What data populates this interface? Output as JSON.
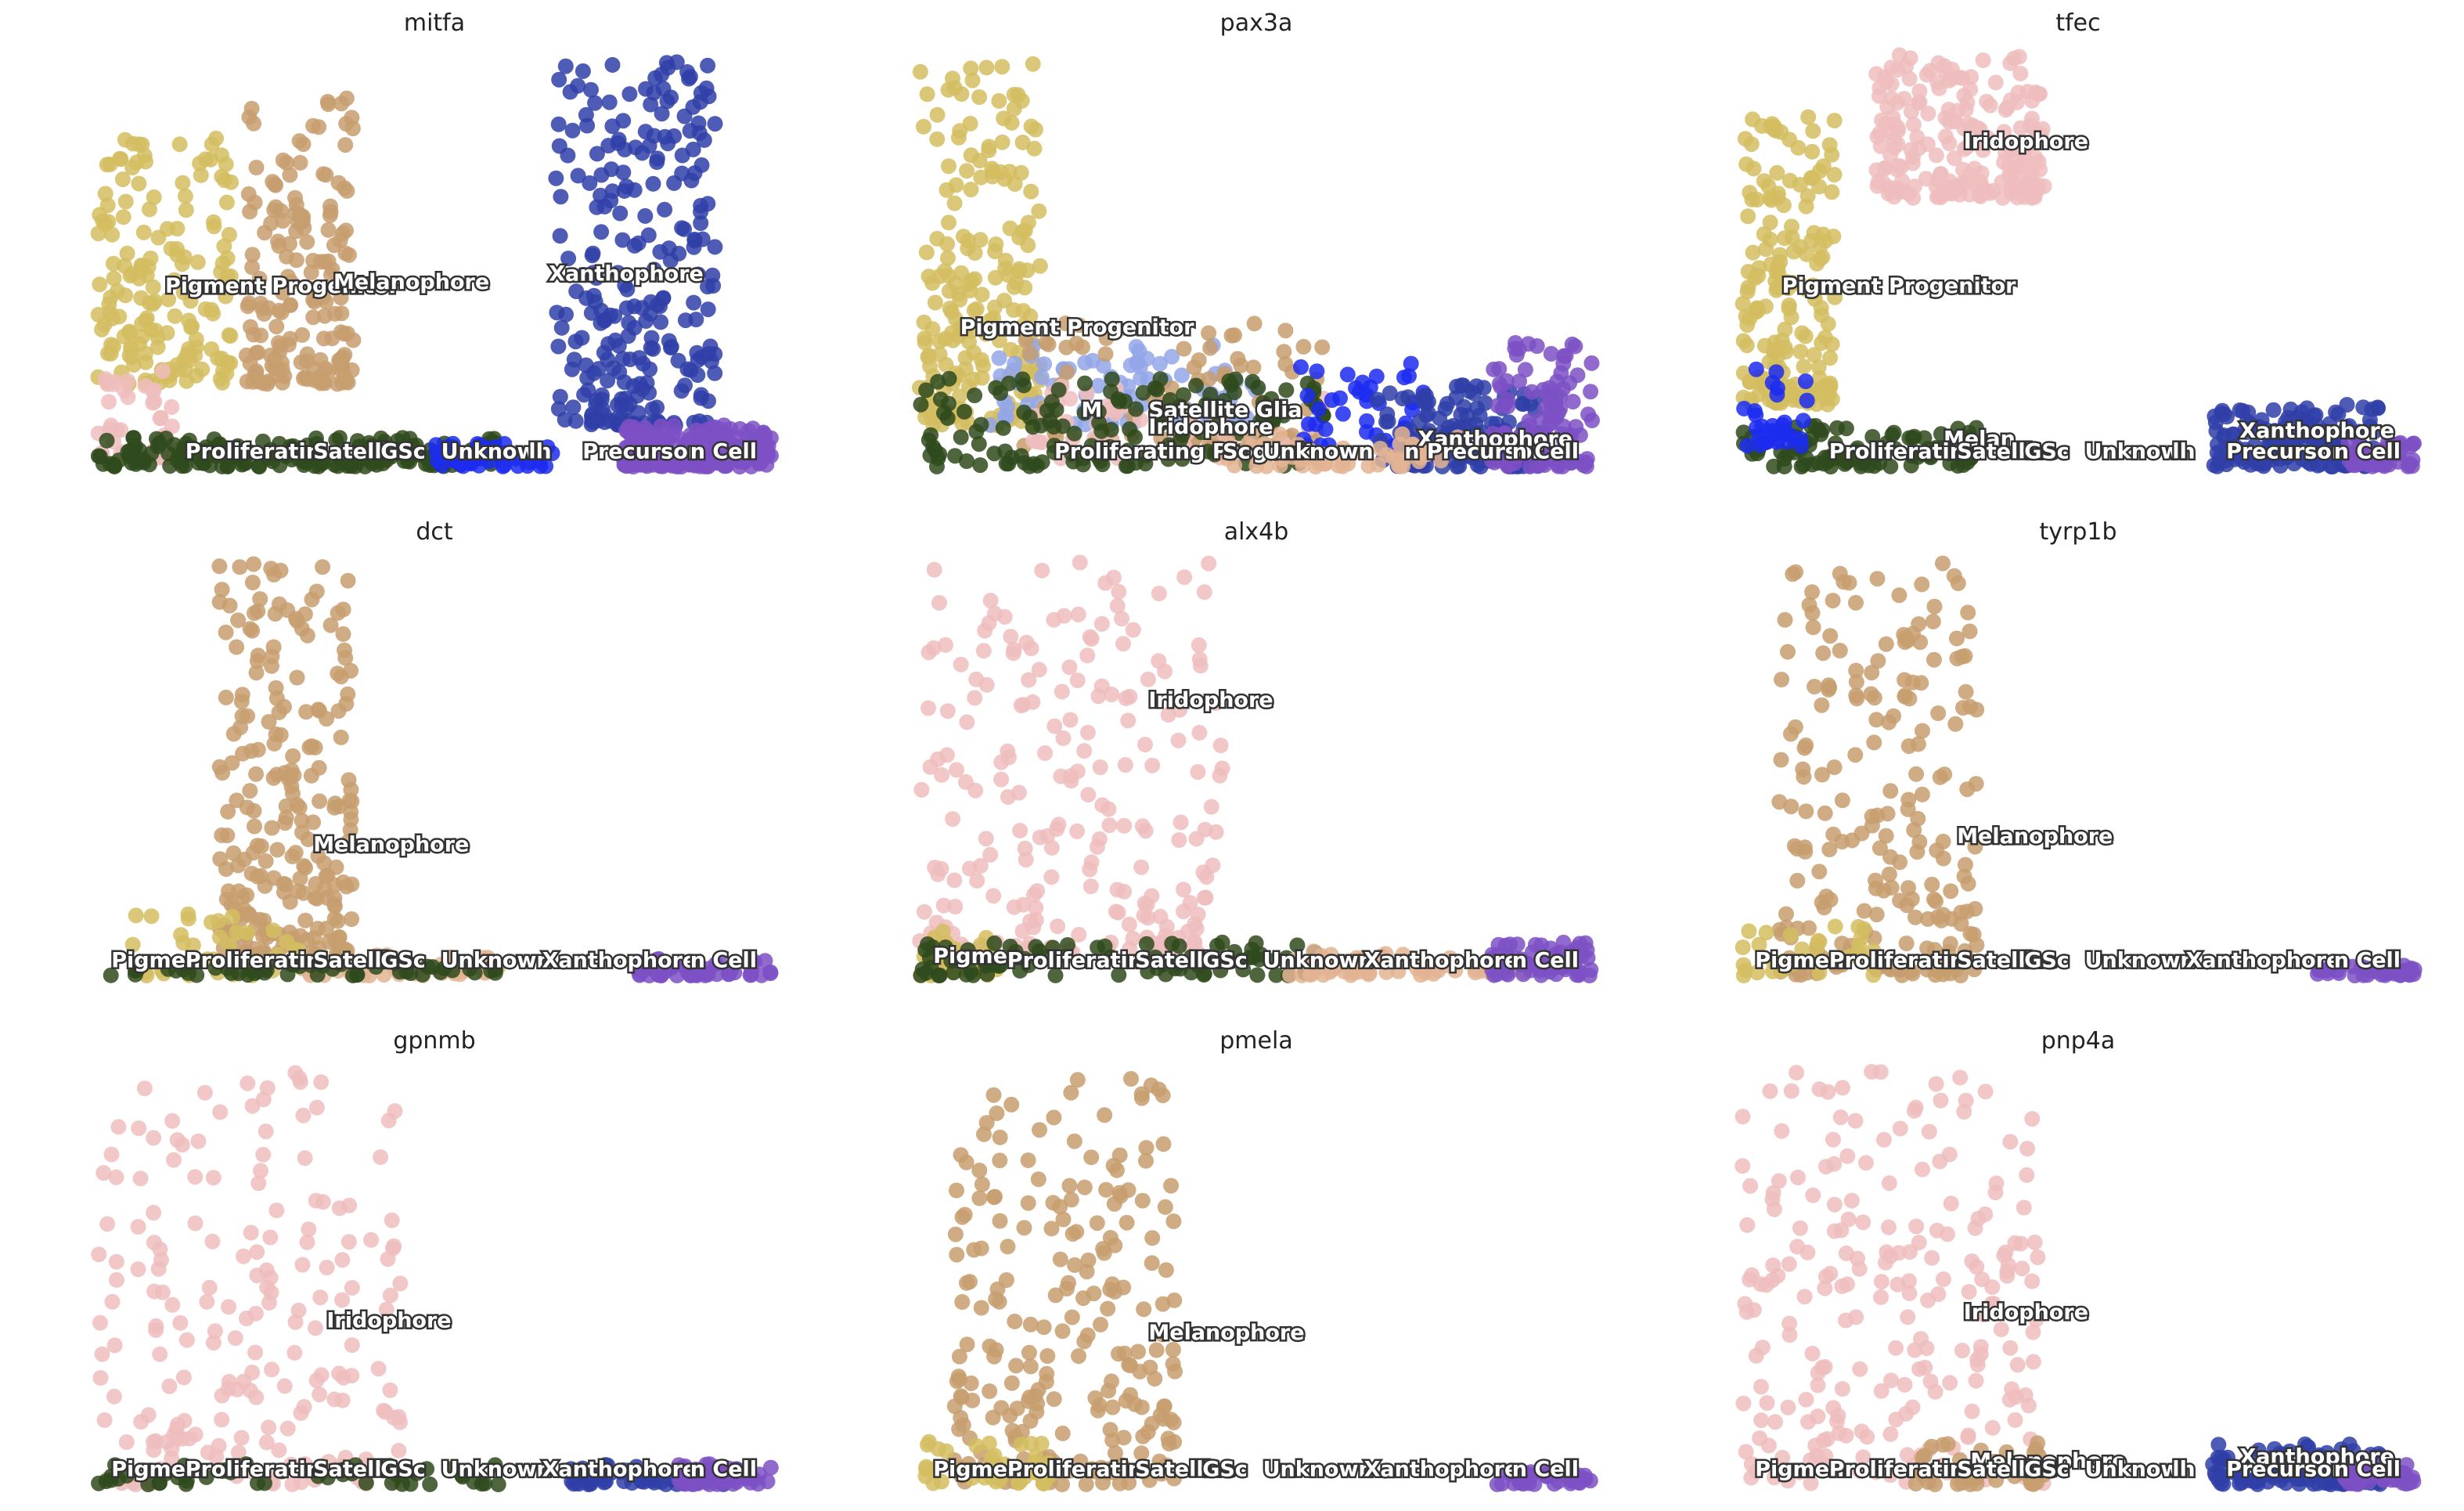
{
  "colors": {
    "Pigment Progenitor": "#d4bd60",
    "Melanophore": "#c79d6e",
    "Xanthophore": "#3040a8",
    "Iridophore": "#efbdbd",
    "Satellite Glia": "#93a6e8",
    "Proliferating Progenitor": "#2f4a1c",
    "Unknown": "#1c2cf0",
    "Precursor": "#7c50c4",
    "Stem Cell": "#e3b493",
    "Muscle": "#d04040"
  },
  "chart_data": [
    {
      "type": "scatter",
      "title": "mitfa",
      "clusters": [
        {
          "name": "Melanophore",
          "color": "#c79d6e",
          "x": [
            0.22,
            0.38
          ],
          "y": [
            0.2,
            0.9
          ],
          "n": 170
        },
        {
          "name": "Pigment Progenitor",
          "color": "#d4bd60",
          "x": [
            0.0,
            0.2
          ],
          "y": [
            0.2,
            0.82
          ],
          "n": 170
        },
        {
          "name": "Iridophore",
          "color": "#efbdbd",
          "x": [
            0.0,
            0.12
          ],
          "y": [
            0.02,
            0.25
          ],
          "n": 40
        },
        {
          "name": "Xanthophore",
          "color": "#3040a8",
          "x": [
            0.68,
            0.92
          ],
          "y": [
            0.1,
            0.98
          ],
          "n": 260
        },
        {
          "name": "Precursor",
          "color": "#7c50c4",
          "x": [
            0.78,
            1.0
          ],
          "y": [
            0.0,
            0.1
          ],
          "n": 220
        },
        {
          "name": "Proliferating Progenitor",
          "color": "#2f4a1c",
          "x": [
            0.0,
            0.6
          ],
          "y": [
            0.0,
            0.07
          ],
          "n": 170
        },
        {
          "name": "Unknown",
          "color": "#1c2cf0",
          "x": [
            0.5,
            0.68
          ],
          "y": [
            0.0,
            0.06
          ],
          "n": 40
        }
      ],
      "labels": [
        {
          "text": "Pigment Progenitor",
          "x": 0.1,
          "y": 0.42
        },
        {
          "text": "Melanophore",
          "x": 0.35,
          "y": 0.43
        },
        {
          "text": "Xanthophore",
          "x": 0.67,
          "y": 0.45
        },
        {
          "text": "Proliferatin",
          "x": 0.13,
          "y": 0.02
        },
        {
          "text": "Satellite",
          "x": 0.32,
          "y": 0.02
        },
        {
          "text": "GSc",
          "x": 0.42,
          "y": 0.02
        },
        {
          "text": "Unknown",
          "x": 0.51,
          "y": 0.02
        },
        {
          "text": "ll",
          "x": 0.64,
          "y": 0.02
        },
        {
          "text": "Precursor",
          "x": 0.72,
          "y": 0.02
        },
        {
          "text": "n Cell",
          "x": 0.88,
          "y": 0.02
        }
      ]
    },
    {
      "type": "scatter",
      "title": "pax3a",
      "clusters": [
        {
          "name": "Pigment Progenitor",
          "color": "#d4bd60",
          "x": [
            0.0,
            0.18
          ],
          "y": [
            0.1,
            0.98
          ],
          "n": 200
        },
        {
          "name": "Satellite Glia",
          "color": "#93a6e8",
          "x": [
            0.1,
            0.5
          ],
          "y": [
            0.1,
            0.3
          ],
          "n": 90
        },
        {
          "name": "Melanophore",
          "color": "#c79d6e",
          "x": [
            0.15,
            0.6
          ],
          "y": [
            0.05,
            0.35
          ],
          "n": 80
        },
        {
          "name": "Iridophore",
          "color": "#efbdbd",
          "x": [
            0.15,
            0.6
          ],
          "y": [
            0.02,
            0.2
          ],
          "n": 60
        },
        {
          "name": "Proliferating Progenitor",
          "color": "#2f4a1c",
          "x": [
            0.0,
            0.6
          ],
          "y": [
            0.0,
            0.22
          ],
          "n": 150
        },
        {
          "name": "Unknown",
          "color": "#1c2cf0",
          "x": [
            0.55,
            0.75
          ],
          "y": [
            0.05,
            0.25
          ],
          "n": 40
        },
        {
          "name": "Xanthophore",
          "color": "#3040a8",
          "x": [
            0.68,
            0.92
          ],
          "y": [
            0.0,
            0.2
          ],
          "n": 140
        },
        {
          "name": "Precursor",
          "color": "#7c50c4",
          "x": [
            0.85,
            1.0
          ],
          "y": [
            0.0,
            0.3
          ],
          "n": 110
        },
        {
          "name": "Stem Cell",
          "color": "#e3b493",
          "x": [
            0.45,
            0.8
          ],
          "y": [
            0.0,
            0.08
          ],
          "n": 60
        }
      ],
      "labels": [
        {
          "text": "Pigment Progenitor",
          "x": 0.06,
          "y": 0.32
        },
        {
          "text": "Satellite Glia",
          "x": 0.34,
          "y": 0.12
        },
        {
          "text": "M",
          "x": 0.24,
          "y": 0.12
        },
        {
          "text": "Iridophore",
          "x": 0.34,
          "y": 0.08
        },
        {
          "text": "Xanthophore",
          "x": 0.74,
          "y": 0.05
        },
        {
          "text": "Proliferating Progenit",
          "x": 0.2,
          "y": 0.02
        },
        {
          "text": "Sc",
          "x": 0.45,
          "y": 0.02
        },
        {
          "text": "Unknown",
          "x": 0.51,
          "y": 0.02
        },
        {
          "text": "n Precursor",
          "x": 0.72,
          "y": 0.02
        },
        {
          "text": "n Cell",
          "x": 0.88,
          "y": 0.02
        }
      ]
    },
    {
      "type": "scatter",
      "title": "tfec",
      "clusters": [
        {
          "name": "Iridophore",
          "color": "#efbdbd",
          "x": [
            0.2,
            0.45
          ],
          "y": [
            0.65,
            1.0
          ],
          "n": 200
        },
        {
          "name": "Pigment Progenitor",
          "color": "#d4bd60",
          "x": [
            0.0,
            0.14
          ],
          "y": [
            0.15,
            0.85
          ],
          "n": 180
        },
        {
          "name": "Proliferating Progenitor",
          "color": "#2f4a1c",
          "x": [
            0.0,
            0.35
          ],
          "y": [
            0.0,
            0.1
          ],
          "n": 100
        },
        {
          "name": "Unknown",
          "color": "#1c2cf0",
          "x": [
            0.0,
            0.1
          ],
          "y": [
            0.05,
            0.25
          ],
          "n": 30
        },
        {
          "name": "Xanthophore",
          "color": "#3040a8",
          "x": [
            0.7,
            0.95
          ],
          "y": [
            0.0,
            0.15
          ],
          "n": 160
        },
        {
          "name": "Precursor",
          "color": "#7c50c4",
          "x": [
            0.9,
            1.0
          ],
          "y": [
            0.0,
            0.06
          ],
          "n": 50
        }
      ],
      "labels": [
        {
          "text": "Iridophore",
          "x": 0.33,
          "y": 0.77
        },
        {
          "text": "Pigment Progenitor",
          "x": 0.06,
          "y": 0.42
        },
        {
          "text": "Xanthophore",
          "x": 0.74,
          "y": 0.07
        },
        {
          "text": "Melan",
          "x": 0.3,
          "y": 0.05
        },
        {
          "text": "Proliferatin",
          "x": 0.13,
          "y": 0.02
        },
        {
          "text": "Satellite",
          "x": 0.32,
          "y": 0.02
        },
        {
          "text": "GSc",
          "x": 0.42,
          "y": 0.02
        },
        {
          "text": "Unknown",
          "x": 0.51,
          "y": 0.02
        },
        {
          "text": "ll",
          "x": 0.64,
          "y": 0.02
        },
        {
          "text": "Precursor",
          "x": 0.72,
          "y": 0.02
        },
        {
          "text": "n Cell",
          "x": 0.88,
          "y": 0.02
        }
      ]
    },
    {
      "type": "scatter",
      "title": "dct",
      "clusters": [
        {
          "name": "Melanophore",
          "color": "#c79d6e",
          "x": [
            0.18,
            0.38
          ],
          "y": [
            0.05,
            1.0
          ],
          "n": 230
        },
        {
          "name": "Pigment Progenitor",
          "color": "#d4bd60",
          "x": [
            0.05,
            0.3
          ],
          "y": [
            0.0,
            0.15
          ],
          "n": 40
        },
        {
          "name": "Stem Cell",
          "color": "#e3b493",
          "x": [
            0.3,
            0.6
          ],
          "y": [
            0.0,
            0.05
          ],
          "n": 40
        },
        {
          "name": "Precursor",
          "color": "#7c50c4",
          "x": [
            0.8,
            1.0
          ],
          "y": [
            0.0,
            0.04
          ],
          "n": 60
        },
        {
          "name": "Proliferating Progenitor",
          "color": "#2f4a1c",
          "x": [
            0.0,
            0.6
          ],
          "y": [
            0.0,
            0.03
          ],
          "n": 50
        }
      ],
      "labels": [
        {
          "text": "Melanophore",
          "x": 0.32,
          "y": 0.3
        },
        {
          "text": "Pigmen",
          "x": 0.02,
          "y": 0.02
        },
        {
          "text": "Proliferatin",
          "x": 0.13,
          "y": 0.02
        },
        {
          "text": "Satellite",
          "x": 0.32,
          "y": 0.02
        },
        {
          "text": "GSc",
          "x": 0.42,
          "y": 0.02
        },
        {
          "text": "Unknown",
          "x": 0.51,
          "y": 0.02
        },
        {
          "text": "Xanthophore",
          "x": 0.66,
          "y": 0.02
        },
        {
          "text": "n Cell",
          "x": 0.88,
          "y": 0.02
        }
      ]
    },
    {
      "type": "scatter",
      "title": "alx4b",
      "clusters": [
        {
          "name": "Iridophore",
          "color": "#efbdbd",
          "x": [
            0.0,
            0.45
          ],
          "y": [
            0.05,
            1.0
          ],
          "n": 220
        },
        {
          "name": "Pigment Progenitor",
          "color": "#d4bd60",
          "x": [
            0.0,
            0.12
          ],
          "y": [
            0.0,
            0.12
          ],
          "n": 40
        },
        {
          "name": "Proliferating Progenitor",
          "color": "#2f4a1c",
          "x": [
            0.0,
            0.6
          ],
          "y": [
            0.0,
            0.08
          ],
          "n": 80
        },
        {
          "name": "Stem Cell",
          "color": "#e3b493",
          "x": [
            0.55,
            0.9
          ],
          "y": [
            0.0,
            0.06
          ],
          "n": 60
        },
        {
          "name": "Precursor",
          "color": "#7c50c4",
          "x": [
            0.85,
            1.0
          ],
          "y": [
            0.0,
            0.08
          ],
          "n": 70
        }
      ],
      "labels": [
        {
          "text": "Iridophore",
          "x": 0.34,
          "y": 0.65
        },
        {
          "text": "Pigmen",
          "x": 0.02,
          "y": 0.03
        },
        {
          "text": "Proliferatin",
          "x": 0.13,
          "y": 0.02
        },
        {
          "text": "Satellite",
          "x": 0.32,
          "y": 0.02
        },
        {
          "text": "GSc",
          "x": 0.42,
          "y": 0.02
        },
        {
          "text": "Unknown",
          "x": 0.51,
          "y": 0.02
        },
        {
          "text": "Xanthophore",
          "x": 0.66,
          "y": 0.02
        },
        {
          "text": "n Cell",
          "x": 0.88,
          "y": 0.02
        }
      ]
    },
    {
      "type": "scatter",
      "title": "tyrp1b",
      "clusters": [
        {
          "name": "Melanophore",
          "color": "#c79d6e",
          "x": [
            0.05,
            0.35
          ],
          "y": [
            0.0,
            1.0
          ],
          "n": 220
        },
        {
          "name": "Pigment Progenitor",
          "color": "#d4bd60",
          "x": [
            0.0,
            0.2
          ],
          "y": [
            0.0,
            0.12
          ],
          "n": 30
        },
        {
          "name": "Precursor",
          "color": "#7c50c4",
          "x": [
            0.85,
            1.0
          ],
          "y": [
            0.0,
            0.03
          ],
          "n": 40
        }
      ],
      "labels": [
        {
          "text": "Melanophore",
          "x": 0.32,
          "y": 0.32
        },
        {
          "text": "Pigmen",
          "x": 0.02,
          "y": 0.02
        },
        {
          "text": "Proliferatin",
          "x": 0.13,
          "y": 0.02
        },
        {
          "text": "Satellite",
          "x": 0.32,
          "y": 0.02
        },
        {
          "text": "GSc",
          "x": 0.42,
          "y": 0.02
        },
        {
          "text": "Unknown",
          "x": 0.51,
          "y": 0.02
        },
        {
          "text": "Xanthophore",
          "x": 0.66,
          "y": 0.02
        },
        {
          "text": "n Cell",
          "x": 0.88,
          "y": 0.02
        }
      ]
    },
    {
      "type": "scatter",
      "title": "gpnmb",
      "clusters": [
        {
          "name": "Iridophore",
          "color": "#efbdbd",
          "x": [
            0.0,
            0.45
          ],
          "y": [
            0.0,
            1.0
          ],
          "n": 200
        },
        {
          "name": "Proliferating Progenitor",
          "color": "#2f4a1c",
          "x": [
            0.0,
            0.6
          ],
          "y": [
            0.0,
            0.05
          ],
          "n": 50
        },
        {
          "name": "Xanthophore",
          "color": "#3040a8",
          "x": [
            0.7,
            0.95
          ],
          "y": [
            0.0,
            0.05
          ],
          "n": 50
        },
        {
          "name": "Precursor",
          "color": "#7c50c4",
          "x": [
            0.85,
            1.0
          ],
          "y": [
            0.0,
            0.05
          ],
          "n": 50
        }
      ],
      "labels": [
        {
          "text": "Iridophore",
          "x": 0.34,
          "y": 0.38
        },
        {
          "text": "Pigmen",
          "x": 0.02,
          "y": 0.02
        },
        {
          "text": "Proliferatin",
          "x": 0.13,
          "y": 0.02
        },
        {
          "text": "Satellite",
          "x": 0.32,
          "y": 0.02
        },
        {
          "text": "GSc",
          "x": 0.42,
          "y": 0.02
        },
        {
          "text": "Unknown",
          "x": 0.51,
          "y": 0.02
        },
        {
          "text": "Xanthophore",
          "x": 0.66,
          "y": 0.02
        },
        {
          "text": "n Cell",
          "x": 0.88,
          "y": 0.02
        }
      ]
    },
    {
      "type": "scatter",
      "title": "pmela",
      "clusters": [
        {
          "name": "Melanophore",
          "color": "#c79d6e",
          "x": [
            0.05,
            0.38
          ],
          "y": [
            0.0,
            1.0
          ],
          "n": 230
        },
        {
          "name": "Pigment Progenitor",
          "color": "#d4bd60",
          "x": [
            0.0,
            0.2
          ],
          "y": [
            0.0,
            0.12
          ],
          "n": 40
        },
        {
          "name": "Precursor",
          "color": "#7c50c4",
          "x": [
            0.85,
            1.0
          ],
          "y": [
            0.0,
            0.03
          ],
          "n": 40
        }
      ],
      "labels": [
        {
          "text": "Melanophore",
          "x": 0.34,
          "y": 0.35
        },
        {
          "text": "Pigmen",
          "x": 0.02,
          "y": 0.02
        },
        {
          "text": "Proliferatin",
          "x": 0.13,
          "y": 0.02
        },
        {
          "text": "Satellite",
          "x": 0.32,
          "y": 0.02
        },
        {
          "text": "GSc",
          "x": 0.42,
          "y": 0.02
        },
        {
          "text": "Unknown",
          "x": 0.51,
          "y": 0.02
        },
        {
          "text": "Xanthophore",
          "x": 0.66,
          "y": 0.02
        },
        {
          "text": "n Cell",
          "x": 0.88,
          "y": 0.02
        }
      ]
    },
    {
      "type": "scatter",
      "title": "pnp4a",
      "clusters": [
        {
          "name": "Iridophore",
          "color": "#efbdbd",
          "x": [
            0.0,
            0.45
          ],
          "y": [
            0.0,
            1.0
          ],
          "n": 230
        },
        {
          "name": "Melanophore",
          "color": "#c79d6e",
          "x": [
            0.25,
            0.45
          ],
          "y": [
            0.0,
            0.1
          ],
          "n": 40
        },
        {
          "name": "Xanthophore",
          "color": "#3040a8",
          "x": [
            0.7,
            0.95
          ],
          "y": [
            0.0,
            0.1
          ],
          "n": 120
        },
        {
          "name": "Precursor",
          "color": "#7c50c4",
          "x": [
            0.88,
            1.0
          ],
          "y": [
            0.0,
            0.05
          ],
          "n": 40
        }
      ],
      "labels": [
        {
          "text": "Iridophore",
          "x": 0.33,
          "y": 0.4
        },
        {
          "text": "Melanophore",
          "x": 0.34,
          "y": 0.04
        },
        {
          "text": "Xanthophore",
          "x": 0.74,
          "y": 0.05
        },
        {
          "text": "Pigmen",
          "x": 0.02,
          "y": 0.02
        },
        {
          "text": "Proliferatin",
          "x": 0.13,
          "y": 0.02
        },
        {
          "text": "Satellite",
          "x": 0.32,
          "y": 0.02
        },
        {
          "text": "GSc",
          "x": 0.42,
          "y": 0.02
        },
        {
          "text": "Unknown",
          "x": 0.51,
          "y": 0.02
        },
        {
          "text": "ll",
          "x": 0.64,
          "y": 0.02
        },
        {
          "text": "Precursor",
          "x": 0.72,
          "y": 0.02
        },
        {
          "text": "n Cell",
          "x": 0.88,
          "y": 0.02
        }
      ]
    }
  ]
}
